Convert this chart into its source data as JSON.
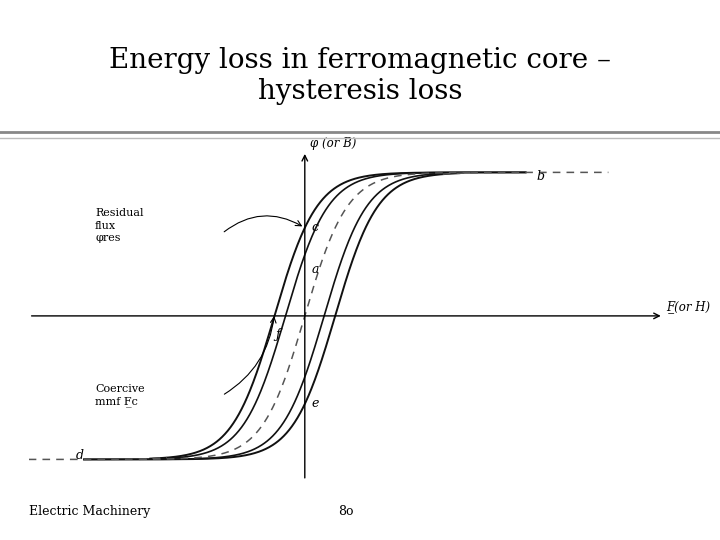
{
  "title": "Energy loss in ferromagnetic core –\nhysteresis loss",
  "title_fontsize": 20,
  "footer_left": "Electric Machinery",
  "footer_right": "8o",
  "footer_fontsize": 9,
  "bg_color": "#ffffff",
  "curve_color": "#111111",
  "dashed_color": "#555555",
  "phi_label": "φ (or B)",
  "mmf_label": "F̲(or H)",
  "residual_flux_label": "Residual\nflux\nφres",
  "coercive_label": "Coercive\nmmf F̲c",
  "sep_color1": "#888888",
  "sep_color2": "#bbbbbb"
}
